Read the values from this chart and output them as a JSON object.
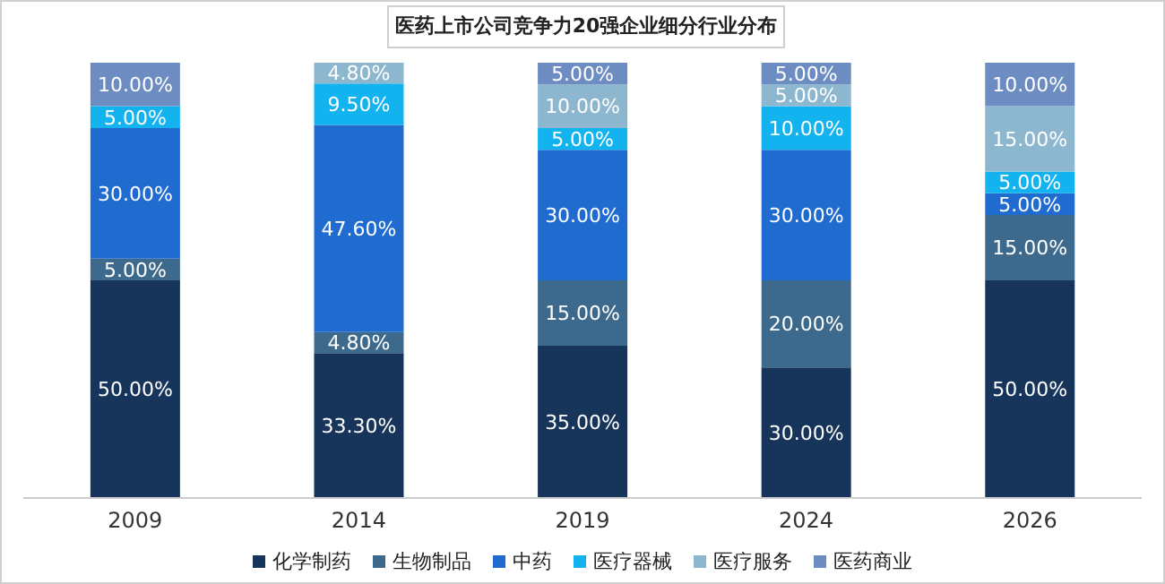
{
  "chart_data": {
    "type": "bar",
    "stacked": true,
    "title": "医药上市公司竞争力20强企业细分行业分布",
    "categories": [
      "2009",
      "2014",
      "2019",
      "2024",
      "2026"
    ],
    "series": [
      {
        "name": "化学制药",
        "color": "#17355b",
        "values": [
          50,
          33.3,
          35,
          30,
          50
        ],
        "value_labels": [
          "50.00%",
          "33.30%",
          "35.00%",
          "30.00%",
          "50.00%"
        ]
      },
      {
        "name": "生物制品",
        "color": "#3d6a8c",
        "values": [
          5,
          4.8,
          15,
          20,
          15
        ],
        "value_labels": [
          "5.00%",
          "4.80%",
          "15.00%",
          "20.00%",
          "15.00%"
        ]
      },
      {
        "name": "中药",
        "color": "#1f6bd0",
        "values": [
          30,
          47.6,
          30,
          30,
          5
        ],
        "value_labels": [
          "30.00%",
          "47.60%",
          "30.00%",
          "30.00%",
          "5.00%"
        ]
      },
      {
        "name": "医疗器械",
        "color": "#12b3ef",
        "values": [
          5,
          9.5,
          5,
          10,
          5
        ],
        "value_labels": [
          "5.00%",
          "9.50%",
          "5.00%",
          "10.00%",
          "5.00%"
        ]
      },
      {
        "name": "医疗服务",
        "color": "#8db7cf",
        "values": [
          null,
          4.8,
          10,
          5,
          15
        ],
        "value_labels": [
          null,
          "4.80%",
          "10.00%",
          "5.00%",
          "15.00%"
        ]
      },
      {
        "name": "医药商业",
        "color": "#6d8dc2",
        "values": [
          10,
          null,
          5,
          5,
          10
        ],
        "value_labels": [
          "10.00%",
          null,
          "5.00%",
          "5.00%",
          "10.00%"
        ]
      }
    ],
    "legend": "bottom",
    "grid": false
  }
}
